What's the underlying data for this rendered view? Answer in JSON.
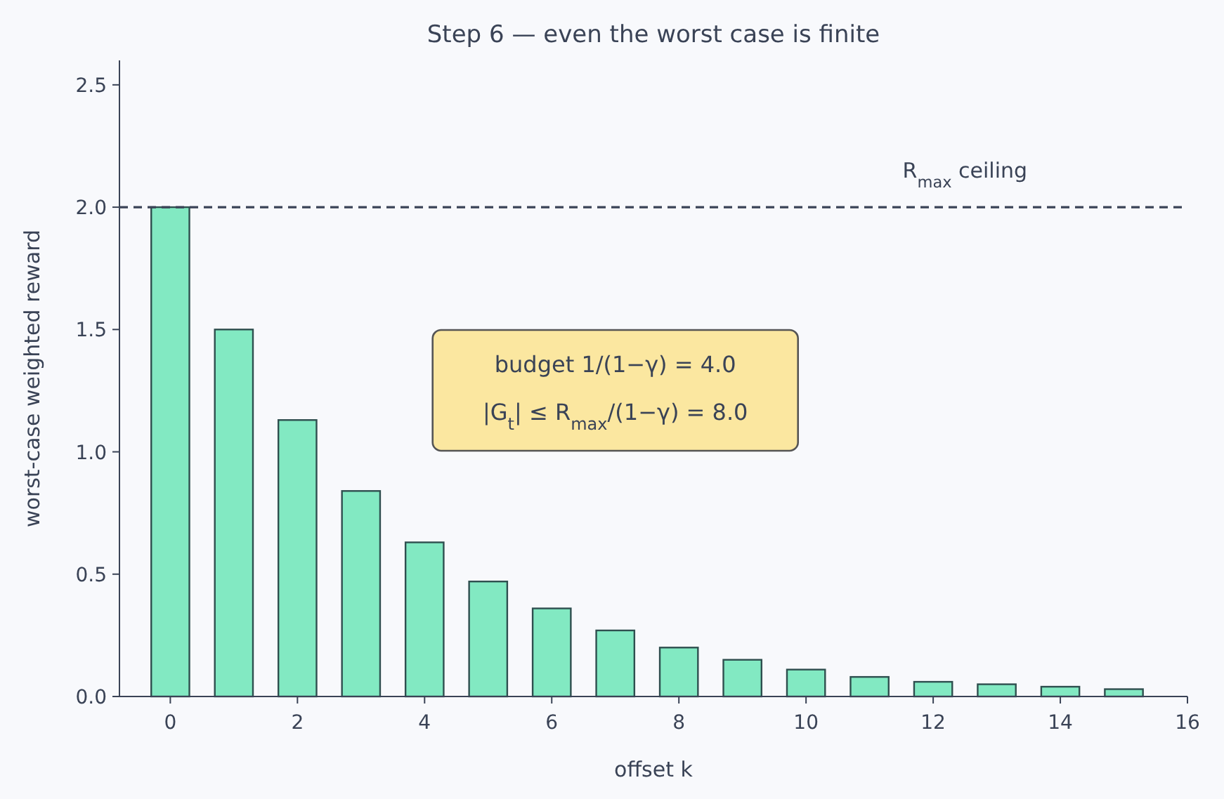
{
  "chart_data": {
    "type": "bar",
    "title": "Step 6  —  even the worst case is finite",
    "xlabel": "offset k",
    "ylabel": "worst-case weighted reward",
    "x": [
      0,
      1,
      2,
      3,
      4,
      5,
      6,
      7,
      8,
      9,
      10,
      11,
      12,
      13,
      14,
      15
    ],
    "values": [
      2.0,
      1.5,
      1.13,
      0.84,
      0.63,
      0.47,
      0.36,
      0.27,
      0.2,
      0.15,
      0.11,
      0.08,
      0.06,
      0.05,
      0.04,
      0.03
    ],
    "color": "#82e9c2",
    "xlim": [
      -0.8,
      16
    ],
    "xticks": [
      0,
      2,
      4,
      6,
      8,
      10,
      12,
      14,
      16
    ],
    "ylim": [
      0,
      2.6
    ],
    "yticks": [
      {
        "value": 0,
        "label": "0.0"
      },
      {
        "value": 0.5,
        "label": "0.5"
      },
      {
        "value": 1,
        "label": "1.0"
      },
      {
        "value": 1.5,
        "label": "1.5"
      },
      {
        "value": 2,
        "label": "2.0"
      },
      {
        "value": 2.5,
        "label": "2.5"
      }
    ],
    "ref_lines": [
      {
        "axis": "y",
        "value": 2,
        "label": "R$_{max}$ ceiling",
        "color": "#3a4356",
        "line_style": "dashed"
      }
    ],
    "annotations": [
      "budget 1/(1−γ) = 4.0",
      "|G$_{t}$| ≤ R$_{max}$/(1−γ) = 8.0"
    ],
    "grid": false
  }
}
